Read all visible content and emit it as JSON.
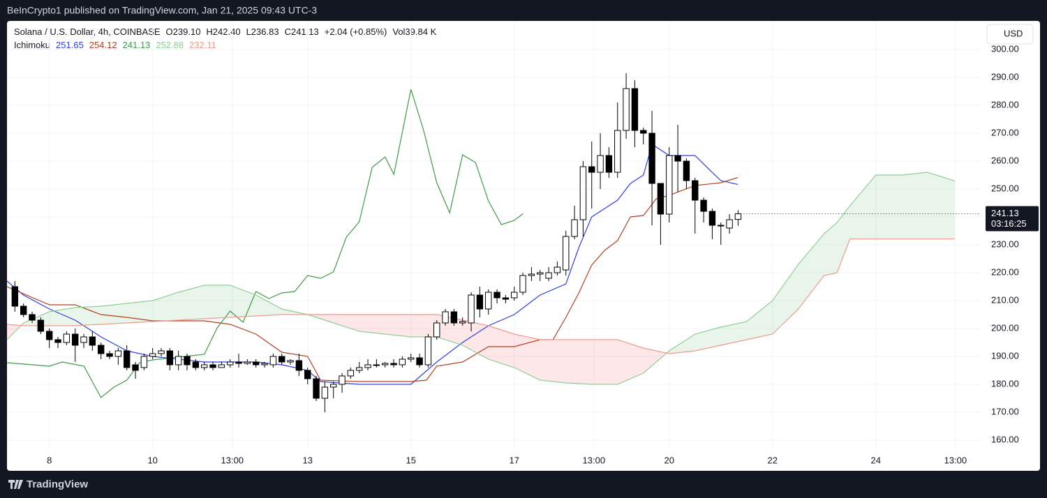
{
  "header": {
    "published": "BeInCrypto1 published on TradingView.com, Jan 21, 2025 09:43 UTC-3",
    "brand": "TradingView"
  },
  "chart_data": {
    "type": "candlestick",
    "symbol": "Solana / U.S. Dollar, 4h, COINBASE",
    "ohlc_legend": [
      "O239.10",
      "H242.40",
      "L236.83",
      "C241.13",
      "+2.04 (+0.85%)",
      "Vol39.84 K"
    ],
    "indicator": "Ichimoku",
    "currency": "USD",
    "countdown": "03:16:25",
    "up_color": "#ffffff",
    "down_color": "#000000",
    "border_color": "#000000",
    "x": [
      7.3333,
      7.5,
      7.6667,
      7.8333,
      8,
      8.1667,
      8.3333,
      8.5,
      8.6667,
      8.8333,
      9,
      9.1667,
      9.3333,
      9.5,
      9.6667,
      9.8333,
      10,
      10.1667,
      10.3333,
      10.5,
      10.6667,
      10.8333,
      11,
      11.1667,
      11.3333,
      11.5,
      11.6667,
      11.8333,
      12,
      12.1667,
      12.3333,
      12.5,
      12.6667,
      12.8333,
      13,
      13.1667,
      13.3333,
      13.5,
      13.6667,
      13.8333,
      14,
      14.1667,
      14.3333,
      14.5,
      14.6667,
      14.8333,
      15,
      15.1667,
      15.3333,
      15.5,
      15.6667,
      15.8333,
      16,
      16.1667,
      16.3333,
      16.5,
      16.6667,
      16.8333,
      17,
      17.1667,
      17.3333,
      17.5,
      17.6667,
      17.8333,
      18,
      18.1667,
      18.3333,
      18.5,
      18.6667,
      18.8333,
      19,
      19.1667,
      19.3333,
      19.5,
      19.6667,
      19.8333,
      20,
      20.1667,
      20.3333,
      20.5,
      20.6667,
      20.8333,
      21,
      21.1667,
      21.3333
    ],
    "open": [
      215,
      208,
      205,
      203,
      199,
      196,
      195,
      198,
      195,
      197,
      194,
      191,
      190,
      192,
      187,
      186,
      190,
      191,
      192,
      187,
      190,
      188,
      186,
      187,
      186,
      187,
      188,
      187.5,
      188,
      187,
      187,
      190,
      188,
      188.5,
      185,
      182,
      175,
      179,
      180,
      183,
      185,
      186,
      187,
      187,
      187.5,
      187,
      189,
      189.5,
      187,
      197,
      202,
      206,
      202,
      202,
      212,
      207,
      213,
      211,
      211,
      213,
      219,
      219.5,
      218,
      220,
      221,
      233,
      239,
      258,
      256,
      262,
      256,
      271,
      286,
      271,
      270,
      252,
      241,
      262,
      260,
      253,
      246,
      242,
      237,
      236,
      239.1
    ],
    "high": [
      217,
      209,
      206,
      204,
      200,
      197,
      199,
      200,
      198,
      199,
      195,
      192,
      193,
      194,
      188,
      191,
      193,
      193,
      193,
      192,
      191,
      189,
      188,
      188,
      188,
      189,
      191,
      189,
      189,
      188,
      191,
      191,
      189,
      191,
      186,
      183,
      181,
      181,
      184,
      186,
      188,
      189,
      189,
      188,
      189,
      190,
      191,
      191,
      198,
      203,
      207,
      207,
      204,
      213,
      215,
      214,
      214,
      212,
      215,
      220,
      222,
      221,
      222,
      224,
      235,
      244,
      260,
      267,
      270,
      265,
      281,
      291.5,
      289,
      272,
      278,
      252,
      265,
      273,
      261,
      254,
      247,
      243,
      238,
      241,
      242.4
    ],
    "low": [
      206,
      204,
      202,
      198,
      193,
      193,
      194,
      188,
      193,
      192,
      189,
      189,
      187,
      185,
      182,
      185,
      189,
      190,
      185,
      185,
      185,
      185,
      185,
      185,
      186,
      186,
      186,
      187,
      186,
      186,
      186,
      187,
      187,
      183,
      180,
      174,
      170,
      175,
      177,
      182,
      184,
      185,
      186,
      186,
      186,
      186,
      188,
      186,
      186,
      196,
      201,
      201,
      201,
      199,
      204,
      205,
      209,
      209,
      210,
      212,
      217,
      217,
      217,
      219,
      219,
      232,
      233,
      243,
      250,
      254,
      254,
      268,
      265,
      266,
      237,
      230,
      238,
      249,
      250,
      234,
      238,
      232,
      230,
      234,
      236.83
    ],
    "close": [
      208,
      205,
      203,
      199,
      196,
      195,
      198,
      194,
      197,
      194,
      191,
      190,
      192,
      186,
      185,
      190,
      191,
      192,
      187,
      190,
      187,
      186,
      187,
      186,
      187,
      188,
      187.5,
      188,
      187,
      187.5,
      190,
      188,
      188.5,
      185,
      182,
      175,
      179,
      180,
      183,
      185,
      186,
      187,
      187,
      187.5,
      187,
      189,
      189.5,
      187,
      197,
      202,
      206,
      202,
      202.5,
      212,
      207,
      213,
      211,
      210.5,
      213,
      219,
      219.5,
      220,
      220,
      222,
      233,
      239,
      258,
      256,
      262,
      256,
      271,
      286,
      271,
      270,
      252,
      241,
      262,
      260,
      253,
      246,
      242,
      237,
      237,
      239,
      241.13
    ],
    "series": [
      {
        "color": "#2c3ee8",
        "x": [
          7.18,
          7.5,
          8,
          8.5,
          9,
          9.5,
          10,
          11,
          12,
          12.5,
          13,
          13.25,
          14,
          15,
          15.5,
          16,
          16.5,
          17,
          17.5,
          18,
          18.25,
          18.5,
          18.75,
          19,
          19.25,
          19.5,
          19.67,
          20,
          20.5,
          20.83,
          21,
          21.33
        ],
        "values": [
          217,
          212,
          207,
          203,
          197,
          192,
          190,
          188,
          188,
          187,
          185,
          181,
          180,
          180,
          188,
          195,
          201,
          205,
          212,
          216,
          229,
          240,
          243,
          246,
          252,
          255,
          266,
          262,
          262,
          256,
          253,
          251.65
        ]
      },
      {
        "color": "#b2401f",
        "x": [
          7.18,
          8,
          8.5,
          9,
          9.5,
          10,
          11,
          11.5,
          12,
          12.5,
          13,
          13.25,
          14,
          15,
          15.3,
          15.5,
          16,
          16.5,
          17,
          17.5,
          17.75,
          18,
          18.25,
          18.5,
          18.75,
          19,
          19.25,
          19.5,
          19.75,
          20,
          20.5,
          21,
          21.33
        ],
        "values": [
          215,
          208.5,
          208.5,
          205,
          204,
          202.75,
          202.75,
          201.5,
          198,
          191.5,
          190,
          181.5,
          181,
          181,
          181.5,
          186.5,
          188,
          193.5,
          193.5,
          196,
          196,
          204,
          212.75,
          222.75,
          228,
          231.5,
          240,
          240.5,
          246.5,
          247.75,
          251.25,
          252.25,
          254.12
        ]
      },
      {
        "color": "#3f9a45",
        "x": [
          7.18,
          8,
          8.25,
          8.67,
          9,
          9.25,
          9.5,
          9.75,
          10,
          10.5,
          11,
          11.25,
          11.5,
          11.75,
          12,
          12.25,
          12.5,
          12.75,
          13,
          13.25,
          13.5,
          13.75,
          14,
          14.25,
          14.5,
          14.67,
          15,
          15.25,
          15.5,
          15.75,
          16,
          16.25,
          16.5,
          16.75,
          17,
          17.17
        ],
        "values": [
          187.75,
          186.5,
          188,
          186.5,
          175.25,
          179,
          181.5,
          187.75,
          188.75,
          189.75,
          190.75,
          200.25,
          206.25,
          202.25,
          213.25,
          210.75,
          212.75,
          213.25,
          219,
          218,
          220.25,
          232.75,
          238.25,
          257.75,
          261.5,
          255.25,
          285.75,
          270.75,
          252.25,
          241.5,
          262.25,
          259.5,
          245.75,
          237.25,
          238.75,
          241.13
        ]
      },
      {
        "color": "#8fcf93",
        "x": [
          7.18,
          7.5,
          8,
          8.5,
          9,
          9.5,
          10,
          10.5,
          11,
          11.5,
          12,
          12.5,
          13,
          13.5,
          14,
          14.5,
          15,
          15.5,
          16,
          16.5,
          17,
          17.5,
          18,
          18.5,
          19,
          19.5,
          20,
          20.5,
          21,
          21.5,
          22,
          22.5,
          23,
          23.25,
          23.5,
          24,
          24.5,
          25,
          25.53
        ],
        "values": [
          196,
          202,
          206,
          207.5,
          208,
          209,
          210,
          213,
          215.5,
          215.5,
          212,
          207,
          205,
          202,
          199,
          198,
          197,
          197,
          194,
          189,
          186,
          181.5,
          180.5,
          180,
          180,
          184,
          192,
          198,
          200.5,
          202.5,
          210,
          223,
          234,
          238,
          244,
          255,
          255,
          256,
          252.88
        ]
      },
      {
        "color": "#ee9a8c",
        "x": [
          7.18,
          7.5,
          8,
          8.5,
          9,
          9.5,
          10,
          10.5,
          11,
          11.5,
          12,
          12.5,
          13,
          13.5,
          14,
          14.5,
          15,
          15.5,
          16,
          16.5,
          17,
          17.5,
          18,
          18.5,
          19,
          19.5,
          20,
          20.5,
          21,
          21.5,
          22,
          22.5,
          23,
          23.25,
          23.5,
          24,
          24.5,
          25,
          25.53
        ],
        "values": [
          201.5,
          201,
          201,
          201,
          201.5,
          202,
          202.5,
          203,
          203.5,
          204,
          204.5,
          205,
          205,
          205,
          205,
          205,
          205,
          205,
          203,
          201,
          198,
          196,
          196,
          196,
          196,
          193,
          191,
          192,
          194,
          196,
          198,
          207,
          219,
          220,
          232.11,
          232.11,
          232.11,
          232.11,
          232.11
        ]
      }
    ],
    "cloud": {
      "between": [
        3,
        4
      ],
      "up_color": "rgba(76,175,80,0.12)",
      "down_color": "rgba(242,54,69,0.12)"
    },
    "xlim": [
      7.18,
      26.03
    ],
    "xticks": [
      8,
      10,
      {
        "value": 11.5417,
        "label": "13:00"
      },
      13,
      15,
      17,
      {
        "value": 18.5417,
        "label": "13:00"
      },
      20,
      22,
      24,
      {
        "value": 25.5417,
        "label": "13:00"
      }
    ],
    "ylim": [
      156.5,
      310.25
    ],
    "yticks": [
      {
        "value": 160,
        "label": "160.00"
      },
      {
        "value": 170,
        "label": "170.00"
      },
      {
        "value": 180,
        "label": "180.00"
      },
      {
        "value": 190,
        "label": "190.00"
      },
      {
        "value": 200,
        "label": "200.00"
      },
      {
        "value": 210,
        "label": "210.00"
      },
      {
        "value": 220,
        "label": "220.00"
      },
      {
        "value": 230,
        "label": "230.00"
      },
      {
        "value": 240,
        "label": "240.00"
      },
      {
        "value": 250,
        "label": "250.00"
      },
      {
        "value": 260,
        "label": "260.00"
      },
      {
        "value": 270,
        "label": "270.00"
      },
      {
        "value": 280,
        "label": "280.00"
      },
      {
        "value": 290,
        "label": "290.00"
      },
      {
        "value": 300,
        "label": "300.00"
      }
    ],
    "grid": true
  }
}
